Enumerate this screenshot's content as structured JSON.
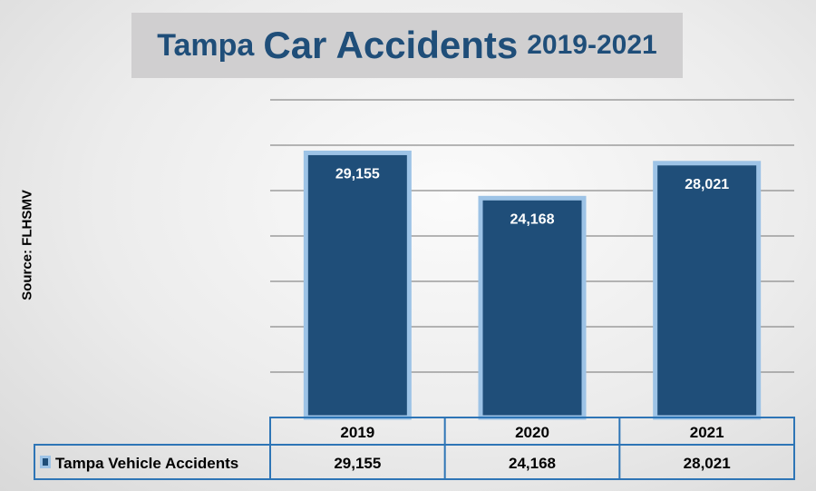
{
  "chart_data": {
    "type": "bar",
    "title_parts": [
      "Tampa",
      "Car Accidents",
      "2019-2021"
    ],
    "ylabel": "Source: FLHSMV",
    "categories": [
      "2019",
      "2020",
      "2021"
    ],
    "series": [
      {
        "name": "Tampa Vehicle Accidents",
        "values": [
          29155,
          24168,
          28021
        ],
        "labels": [
          "29,155",
          "24,168",
          "28,021"
        ]
      }
    ],
    "ylim": [
      0,
      35000
    ],
    "ytick_step": 5000,
    "grid": true,
    "data_table": true,
    "colors": {
      "bar": "#1f4e79",
      "bar_border": "#9dc3e6",
      "title": "#1f4e79",
      "table_border": "#2e75b6"
    }
  }
}
